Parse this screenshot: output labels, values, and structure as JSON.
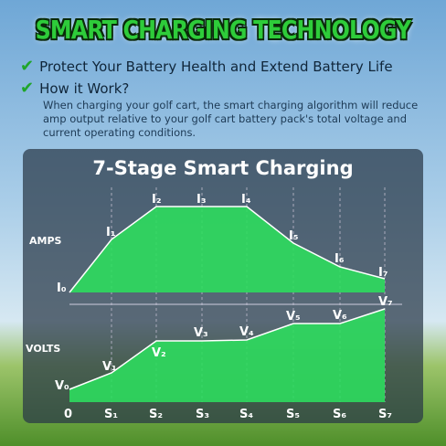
{
  "header": {
    "title": "SMART CHARGING TECHNOLOGY"
  },
  "features": [
    {
      "title": "Protect Your Battery Health and Extend Battery Life"
    },
    {
      "title": "How it Work?",
      "description": "When charging your golf cart, the smart charging algorithm will reduce amp output relative to your golf cart battery pack's total voltage and current operating conditions."
    }
  ],
  "panel": {
    "title": "7-Stage Smart Charging",
    "amps_label": "AMPS",
    "volts_label": "VOLTS",
    "amps_points": [
      "I₀",
      "I₁",
      "I₂",
      "I₃",
      "I₄",
      "I₅",
      "I₆",
      "I₇"
    ],
    "volts_points": [
      "V₀",
      "V₁",
      "V₂",
      "V₃",
      "V₄",
      "V₅",
      "V₆",
      "V₇"
    ],
    "stages": [
      "0",
      "S₁",
      "S₂",
      "S₃",
      "S₄",
      "S₅",
      "S₆",
      "S₇"
    ]
  }
}
